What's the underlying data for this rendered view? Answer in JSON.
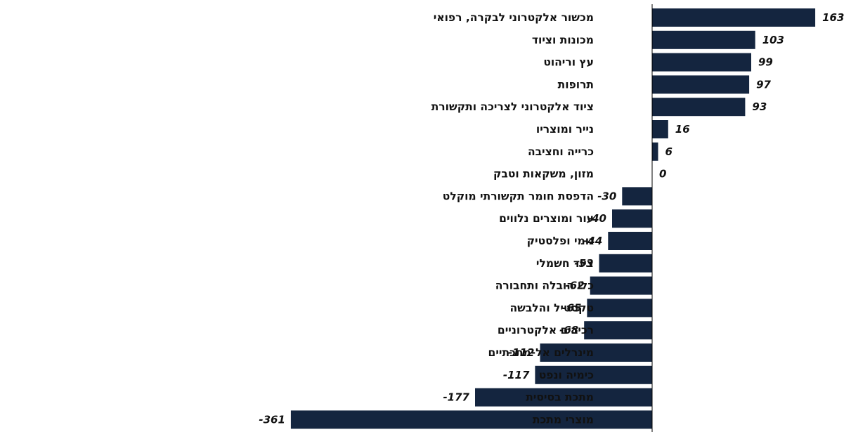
{
  "colors": {
    "bar": "#14253f",
    "axis": "#000000",
    "text": "#111111",
    "background": "#ffffff"
  },
  "chart_data": {
    "type": "bar",
    "orientation": "horizontal",
    "categories": [
      "מכשור אלקטרוני לבקרה, רפואי",
      "מכונות וציוד",
      "עץ וריהוט",
      "תרופות",
      "ציוד אלקטרוני לצריכה ותקשורת",
      "נייר ומוצריו",
      "כרייה וחציבה",
      "מזון, משקאות וטבק",
      "הדפסת חומר תקשורתי מוקלט",
      "עור ומוצרים נלווים",
      "גומי ופלסטיק",
      "ציוד חשמלי",
      "כלי הובלה ותחבורה",
      "טקסטיל והלבשה",
      "רכיבים אלקטרוניים",
      "מינרלים אל-מתכתיים",
      "כימיה ונפט",
      "מתכת בסיסית",
      "מוצרי מתכת"
    ],
    "values": [
      163,
      103,
      99,
      97,
      93,
      16,
      6,
      0,
      -30,
      -40,
      -44,
      -53,
      -62,
      -65,
      -68,
      -112,
      -117,
      -177,
      -361
    ],
    "value_labels": [
      "163",
      "103",
      "99",
      "97",
      "93",
      "16",
      "6",
      "0",
      "-30",
      "-40",
      "-44",
      "-53",
      "-62",
      "-65",
      "-68",
      "-112",
      "-117",
      "-177",
      "-361"
    ],
    "title": "",
    "xlabel": "",
    "ylabel": "",
    "xlim": [
      -365,
      165
    ],
    "grid": false,
    "legend": "none"
  }
}
